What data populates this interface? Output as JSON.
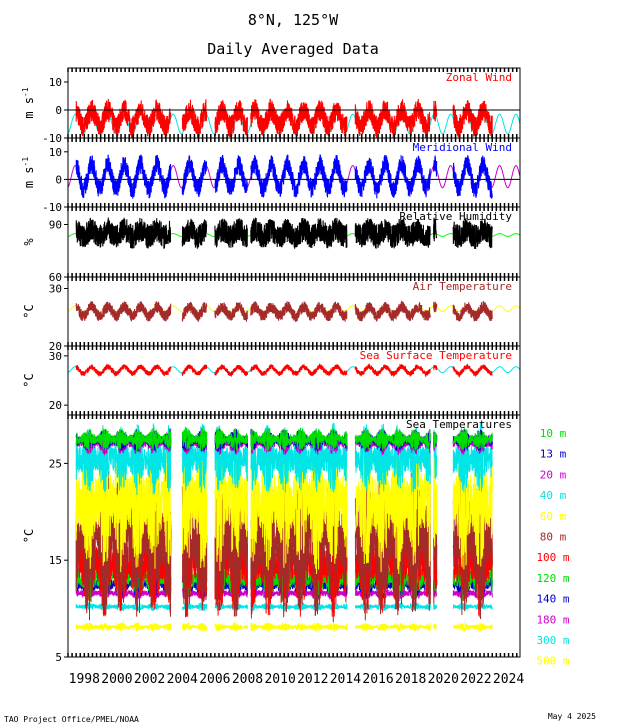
{
  "header": {
    "title": "8°N, 125°W",
    "subtitle": "Daily Averaged Data"
  },
  "footer": {
    "left": "TAO Project Office/PMEL/NOAA",
    "right": "May  4 2025"
  },
  "colors": {
    "red": "#ff0000",
    "cyan": "#00e5e5",
    "blue": "#0000ff",
    "magenta": "#cc00cc",
    "black": "#000000",
    "green": "#00ff00",
    "brown": "#a52a2a",
    "yellow": "#ffff00",
    "navy": "#0000cc",
    "lime": "#00dd00"
  },
  "chart_data": {
    "type": "line",
    "xlim": [
      1997,
      2024.7
    ],
    "x_ticks": [
      1998,
      2000,
      2002,
      2004,
      2006,
      2008,
      2010,
      2012,
      2014,
      2016,
      2018,
      2020,
      2022,
      2024
    ],
    "data_range": [
      1997.5,
      2023.0
    ],
    "gaps": [
      [
        2003.3,
        2004.0
      ],
      [
        2005.5,
        2006.0
      ],
      [
        2008.0,
        2008.2
      ],
      [
        2014.1,
        2014.6
      ],
      [
        2019.2,
        2019.4
      ],
      [
        2019.6,
        2020.6
      ]
    ],
    "panels": [
      {
        "id": "zonal",
        "title": "Zonal Wind",
        "title_color": "red",
        "ylabel": "m s",
        "ylabel_sup": "-1",
        "ylim": [
          -10,
          15
        ],
        "yticks": [
          -10,
          0,
          10
        ],
        "zero_line": true,
        "series": [
          {
            "name": "",
            "kind": "climatology",
            "color": "cyan",
            "mean": -5,
            "amp": 3.5
          },
          {
            "name": "",
            "kind": "daily",
            "color": "red",
            "mean": -3,
            "amp": 3,
            "noise": 4
          }
        ]
      },
      {
        "id": "meridional",
        "title": "Meridional Wind",
        "title_color": "blue",
        "ylabel": "m s",
        "ylabel_sup": "-1",
        "ylim": [
          -10,
          15
        ],
        "yticks": [
          -10,
          0,
          10
        ],
        "zero_line": true,
        "series": [
          {
            "name": "",
            "kind": "climatology",
            "color": "magenta",
            "mean": 1,
            "amp": 4
          },
          {
            "name": "",
            "kind": "daily",
            "color": "blue",
            "mean": 1,
            "amp": 4.5,
            "noise": 3.5
          }
        ]
      },
      {
        "id": "rh",
        "title": "Relative Humidity",
        "title_color": "black",
        "ylabel": "%",
        "ylabel_sup": "",
        "ylim": [
          60,
          100
        ],
        "yticks": [
          60,
          90
        ],
        "zero_line": false,
        "series": [
          {
            "name": "",
            "kind": "climatology",
            "color": "green",
            "mean": 84,
            "amp": 0.8
          },
          {
            "name": "",
            "kind": "daily",
            "color": "black",
            "mean": 85,
            "amp": 2,
            "noise": 7
          }
        ]
      },
      {
        "id": "airt",
        "title": "Air Temperature",
        "title_color": "brown",
        "ylabel": "°C",
        "ylabel_sup": "",
        "ylim": [
          20,
          32
        ],
        "yticks": [
          20,
          30
        ],
        "zero_line": false,
        "series": [
          {
            "name": "",
            "kind": "climatology",
            "color": "yellow",
            "mean": 26.5,
            "amp": 0.5
          },
          {
            "name": "",
            "kind": "daily",
            "color": "brown",
            "mean": 26,
            "amp": 0.8,
            "noise": 1.0
          }
        ]
      },
      {
        "id": "sst",
        "title": "Sea Surface Temperature",
        "title_color": "red",
        "ylabel": "°C",
        "ylabel_sup": "",
        "ylim": [
          18,
          32
        ],
        "yticks": [
          20,
          30
        ],
        "zero_line": false,
        "series": [
          {
            "name": "",
            "kind": "climatology",
            "color": "cyan",
            "mean": 27.2,
            "amp": 0.6
          },
          {
            "name": "",
            "kind": "daily",
            "color": "red",
            "mean": 27.1,
            "amp": 0.7,
            "noise": 0.5
          }
        ]
      },
      {
        "id": "seatemp",
        "title": "Sea Temperatures",
        "title_color": "black",
        "ylabel": "°C",
        "ylabel_sup": "",
        "ylim": [
          5,
          30
        ],
        "yticks": [
          5,
          15,
          25
        ],
        "zero_line": false,
        "depths": [
          {
            "name": "10 m",
            "color": "lime",
            "mean": 27.5,
            "range": 0.8
          },
          {
            "name": "13 m",
            "color": "navy",
            "mean": 27.4,
            "range": 0.8
          },
          {
            "name": "20 m",
            "color": "magenta",
            "mean": 27.2,
            "range": 0.9
          },
          {
            "name": "40 m",
            "color": "cyan",
            "mean": 25.5,
            "range": 2.5
          },
          {
            "name": "60 m",
            "color": "yellow",
            "mean": 21,
            "range": 5
          },
          {
            "name": "80 m",
            "color": "brown",
            "mean": 17.5,
            "range": 6
          },
          {
            "name": "100 m",
            "color": "red",
            "mean": 15,
            "range": 4
          },
          {
            "name": "120 m",
            "color": "lime",
            "mean": 13.3,
            "range": 1.8
          },
          {
            "name": "140 m",
            "color": "navy",
            "mean": 12.5,
            "range": 1.0
          },
          {
            "name": "180 m",
            "color": "magenta",
            "mean": 11.6,
            "range": 0.5
          },
          {
            "name": "300 m",
            "color": "cyan",
            "mean": 10.2,
            "range": 0.3
          },
          {
            "name": "500 m",
            "color": "yellow",
            "mean": 8.1,
            "range": 0.3
          }
        ]
      }
    ]
  }
}
